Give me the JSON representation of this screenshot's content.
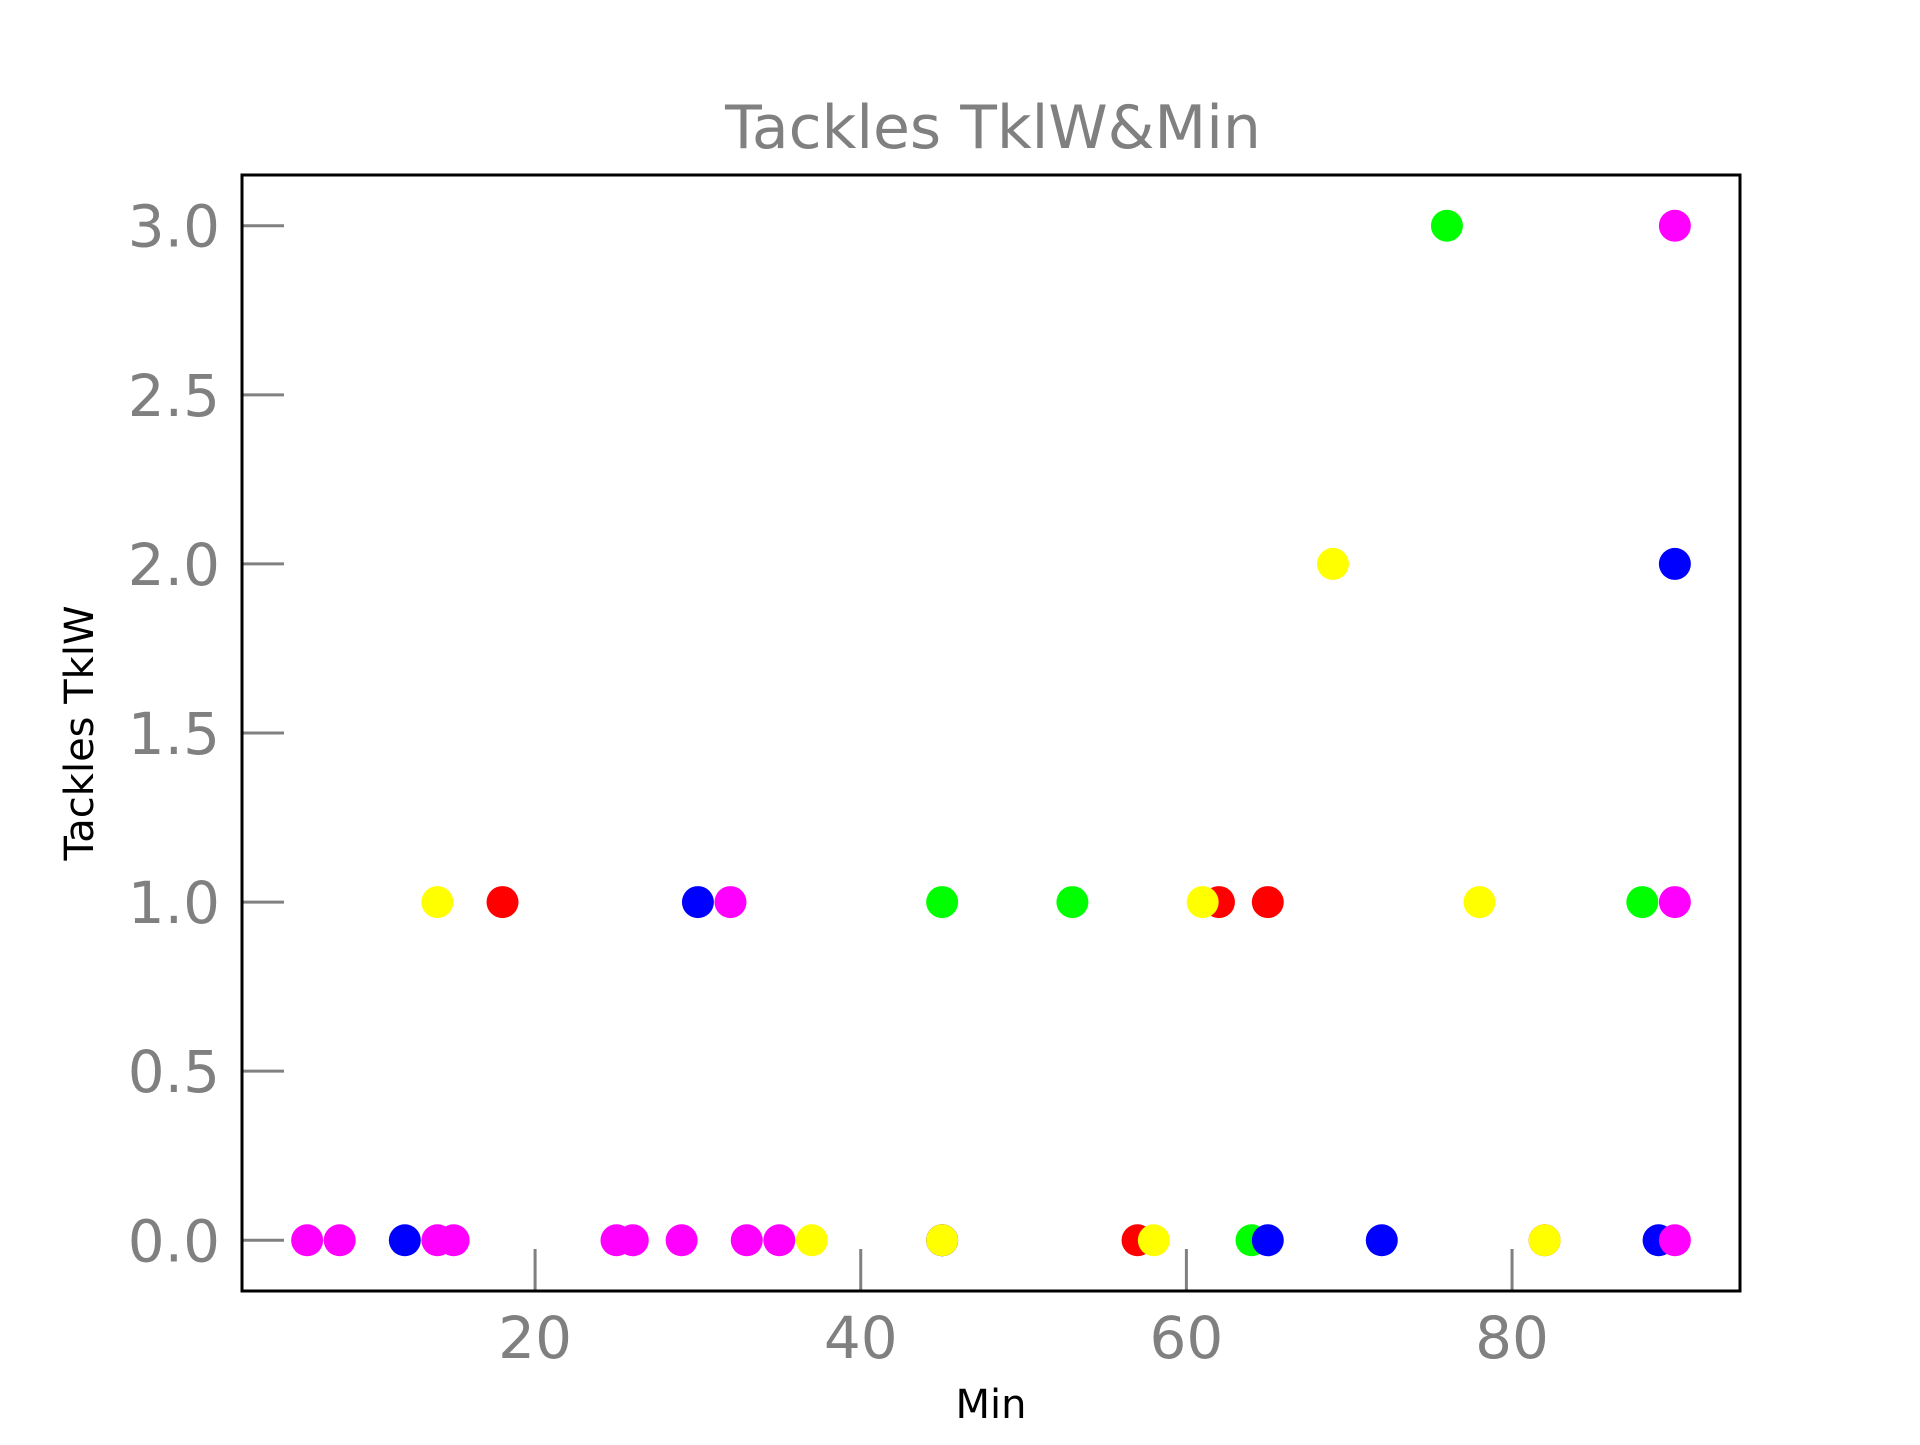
{
  "chart_data": {
    "type": "scatter",
    "title": "Tackles TklW&Min",
    "xlabel": "Min",
    "ylabel": "Tackles TklW",
    "xlim": [
      2,
      94
    ],
    "ylim": [
      -0.15,
      3.15
    ],
    "xticks": [
      20,
      40,
      60,
      80
    ],
    "xtick_labels": [
      "20",
      "40",
      "60",
      "80"
    ],
    "yticks": [
      0.0,
      0.5,
      1.0,
      1.5,
      2.0,
      2.5,
      3.0
    ],
    "ytick_labels": [
      "0.0",
      "0.5",
      "1.0",
      "1.5",
      "2.0",
      "2.5",
      "3.0"
    ],
    "grid": false,
    "legend": false,
    "colors": {
      "red": "#ff0000",
      "yellow": "#ffff00",
      "blue": "#0000ff",
      "magenta": "#ff00ff",
      "green": "#00ff00"
    },
    "series": [
      {
        "color": "#ff0000",
        "points": [
          [
            18,
            1
          ],
          [
            62,
            1
          ],
          [
            65,
            1
          ],
          [
            57,
            0
          ],
          [
            45,
            0
          ],
          [
            82,
            0
          ]
        ]
      },
      {
        "color": "#00ff00",
        "points": [
          [
            76,
            3
          ],
          [
            45,
            1
          ],
          [
            53,
            1
          ],
          [
            88,
            1
          ],
          [
            64,
            0
          ]
        ]
      },
      {
        "color": "#0000ff",
        "points": [
          [
            90,
            2
          ],
          [
            30,
            1
          ],
          [
            12,
            0
          ],
          [
            65,
            0
          ],
          [
            72,
            0
          ],
          [
            89,
            0
          ],
          [
            45,
            0
          ]
        ]
      },
      {
        "color": "#ff00ff",
        "points": [
          [
            90,
            3
          ],
          [
            32,
            1
          ],
          [
            90,
            1
          ],
          [
            6,
            0
          ],
          [
            8,
            0
          ],
          [
            14,
            0
          ],
          [
            15,
            0
          ],
          [
            25,
            0
          ],
          [
            26,
            0
          ],
          [
            29,
            0
          ],
          [
            33,
            0
          ],
          [
            35,
            0
          ],
          [
            90,
            0
          ]
        ]
      },
      {
        "color": "#ffff00",
        "points": [
          [
            69,
            2
          ],
          [
            14,
            1
          ],
          [
            61,
            1
          ],
          [
            78,
            1
          ],
          [
            37,
            0
          ],
          [
            45,
            0
          ],
          [
            58,
            0
          ],
          [
            82,
            0
          ]
        ]
      }
    ]
  }
}
